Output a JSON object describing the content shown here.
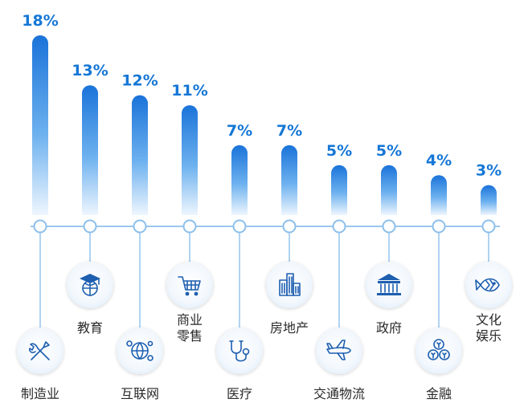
{
  "chart_data": {
    "type": "bar",
    "categories": [
      "制造业",
      "教育",
      "互联网",
      "商业零售",
      "医疗",
      "房地产",
      "交通物流",
      "政府",
      "金融",
      "文化娱乐"
    ],
    "category_lines": [
      [
        "制造业"
      ],
      [
        "教育"
      ],
      [
        "互联网"
      ],
      [
        "商业",
        "零售"
      ],
      [
        "医疗"
      ],
      [
        "房地产"
      ],
      [
        "交通物流"
      ],
      [
        "政府"
      ],
      [
        "金融"
      ],
      [
        "文化",
        "娱乐"
      ]
    ],
    "values": [
      18,
      13,
      12,
      11,
      7,
      7,
      5,
      5,
      4,
      3
    ],
    "value_labels": [
      "18%",
      "13%",
      "12%",
      "11%",
      "7%",
      "7%",
      "5%",
      "5%",
      "4%",
      "3%"
    ],
    "icons": [
      "tools-icon",
      "graduation-globe-icon",
      "network-globe-icon",
      "shopping-cart-icon",
      "stethoscope-icon",
      "buildings-icon",
      "airplane-icon",
      "government-building-icon",
      "coins-icon",
      "fish-icon"
    ],
    "unit": "%",
    "colors": {
      "bar_top": "#1a73d9",
      "bar_bottom": "#e9f4fe",
      "axis": "#9cc8ee",
      "label": "#1577d6",
      "icon": "#1e5fb0"
    }
  }
}
